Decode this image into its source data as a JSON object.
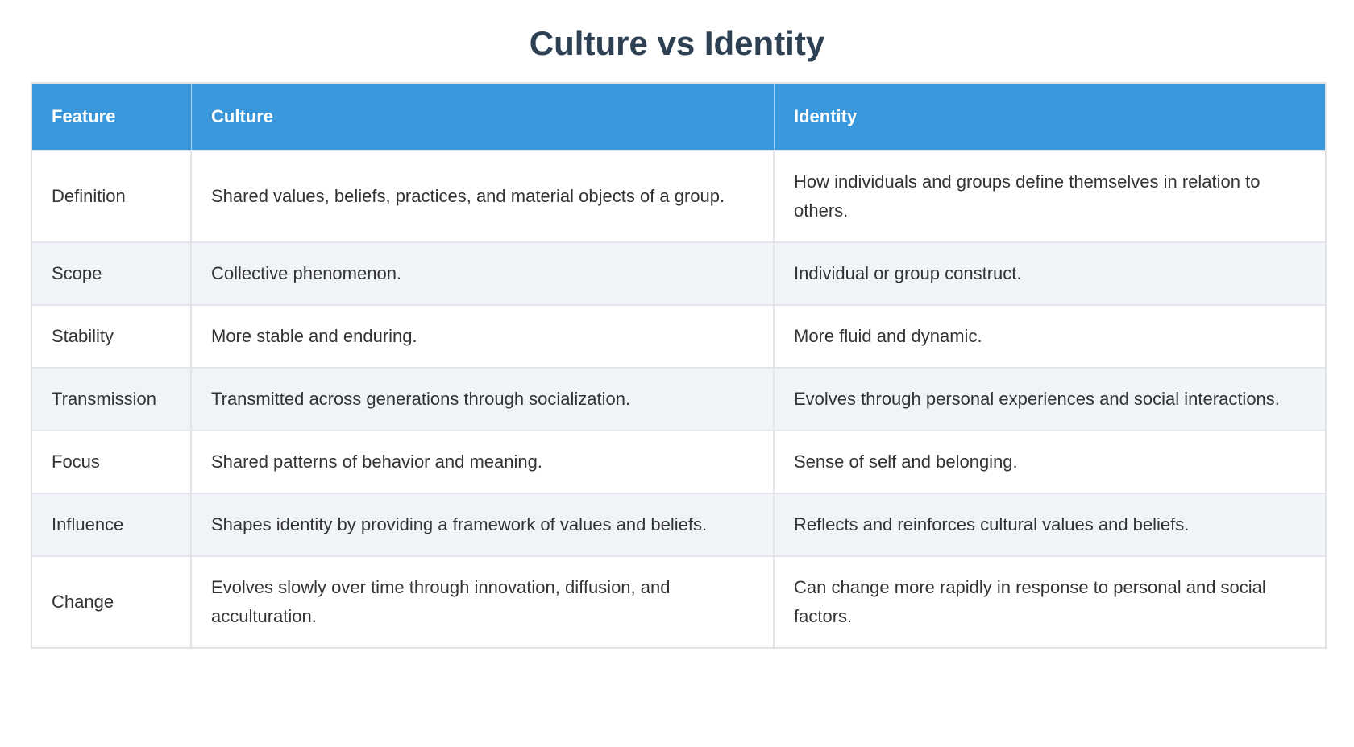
{
  "page": {
    "title": "Culture vs Identity"
  },
  "colors": {
    "title_text": "#2e4154",
    "header_bg": "#3998db",
    "header_text": "#ffffff",
    "stripe_bg": "#f0f4f9",
    "border": "#e2e4e8",
    "body_text": "#333333"
  },
  "table": {
    "columns": [
      "Feature",
      "Culture",
      "Identity"
    ],
    "rows": [
      {
        "feature": "Definition",
        "culture": "Shared values, beliefs, practices, and material objects of a group.",
        "identity": "How individuals and groups define themselves in relation to others."
      },
      {
        "feature": "Scope",
        "culture": "Collective phenomenon.",
        "identity": "Individual or group construct."
      },
      {
        "feature": "Stability",
        "culture": "More stable and enduring.",
        "identity": "More fluid and dynamic."
      },
      {
        "feature": "Transmission",
        "culture": "Transmitted across generations through socialization.",
        "identity": "Evolves through personal experiences and social interactions."
      },
      {
        "feature": "Focus",
        "culture": "Shared patterns of behavior and meaning.",
        "identity": "Sense of self and belonging."
      },
      {
        "feature": "Influence",
        "culture": "Shapes identity by providing a framework of values and beliefs.",
        "identity": "Reflects and reinforces cultural values and beliefs."
      },
      {
        "feature": "Change",
        "culture": "Evolves slowly over time through innovation, diffusion, and acculturation.",
        "identity": "Can change more rapidly in response to personal and social factors."
      }
    ]
  }
}
